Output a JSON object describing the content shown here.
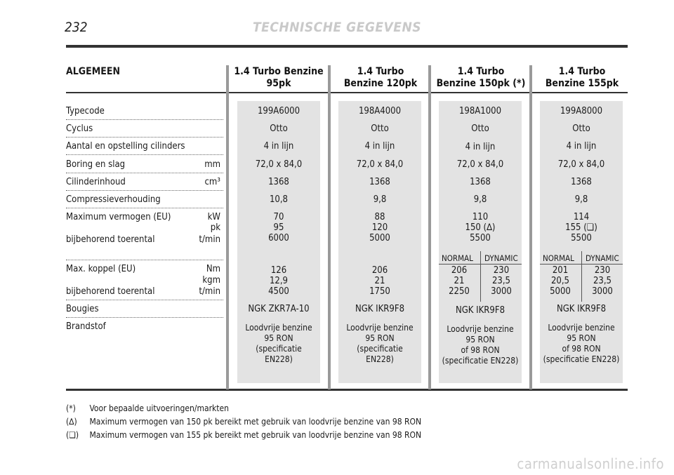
{
  "page_number": "232",
  "header": "TECHNISCHE GEGEVENS",
  "section": "ALGEMEEN",
  "columns": [
    {
      "title": "1.4 Turbo Benzine\n95pk",
      "typecode": "199A6000",
      "cycle": "Otto",
      "layout": "4 in lijn",
      "bore_stroke": "72,0 x 84,0",
      "displacement": "1368",
      "compression": "10,8",
      "power": "70\n95\n6000",
      "torque": "126\n12,9\n4500",
      "plugs": "NGK ZKR7A-10",
      "fuel": "Loodvrije benzine\n95 RON\n(specificatie\nEN228)"
    },
    {
      "title": "1.4 Turbo\nBenzine 120pk",
      "typecode": "198A4000",
      "cycle": "Otto",
      "layout": "4 in lijn",
      "bore_stroke": "72,0 x 84,0",
      "displacement": "1368",
      "compression": "9,8",
      "power": "88\n120\n5000",
      "torque": "206\n21\n1750",
      "plugs": "NGK IKR9F8",
      "fuel": "Loodvrije benzine\n95 RON\n(specificatie\nEN228)"
    },
    {
      "title": "1.4 Turbo\nBenzine 150pk (*)",
      "typecode": "198A1000",
      "cycle": "Otto",
      "layout": "4 in lijn",
      "bore_stroke": "72,0 x 84,0",
      "displacement": "1368",
      "compression": "9,8",
      "power": "110\n150 (∆)\n5500",
      "torque_normal_label": "NORMAL",
      "torque_dynamic_label": "DYNAMIC",
      "torque_normal": "206\n21\n2250",
      "torque_dynamic": "230\n23,5\n3000",
      "plugs": "NGK IKR9F8",
      "fuel": "Loodvrije benzine\n95 RON\nof 98 RON\n(specificatie EN228)"
    },
    {
      "title": "1.4 Turbo\nBenzine 155pk",
      "typecode": "199A8000",
      "cycle": "Otto",
      "layout": "4 in lijn",
      "bore_stroke": "72,0 x 84,0",
      "displacement": "1368",
      "compression": "9,8",
      "power": "114\n155 (❏)\n5500",
      "torque_normal_label": "NORMAL",
      "torque_dynamic_label": "DYNAMIC",
      "torque_normal": "201\n20,5\n5000",
      "torque_dynamic": "230\n23,5\n3000",
      "plugs": "NGK IKR9F8",
      "fuel": "Loodvrije benzine\n95 RON\nof 98 RON\n(specificatie EN228)"
    }
  ],
  "rows": {
    "typecode": "Typecode",
    "cycle": "Cyclus",
    "layout": "Aantal en opstelling cilinders",
    "bore_stroke": "Boring en slag",
    "bore_stroke_unit": "mm",
    "displacement": "Cilinderinhoud",
    "displacement_unit": "cm³",
    "compression": "Compressieverhouding",
    "power": "Maximum vermogen (EU)",
    "power_unit1": "kW",
    "power_unit2": "pk",
    "power_rpm": "bijbehorend toerental",
    "power_rpm_unit": "t/min",
    "torque": "Max. koppel (EU)",
    "torque_unit1": "Nm",
    "torque_unit2": "kgm",
    "torque_rpm": "bijbehorend toerental",
    "torque_rpm_unit": "t/min",
    "plugs": "Bougies",
    "fuel": "Brandstof"
  },
  "footnotes": [
    {
      "mark": "(*)",
      "text": "Voor bepaalde uitvoeringen/markten"
    },
    {
      "mark": "(∆)",
      "text": "Maximum vermogen van 150 pk bereikt met gebruik van loodvrije benzine van 98 RON"
    },
    {
      "mark": "(❏)",
      "text": "Maximum vermogen van 155 pk bereikt met gebruik van loodvrije benzine van 98 RON"
    }
  ],
  "watermark": "carmanualsonline.info"
}
